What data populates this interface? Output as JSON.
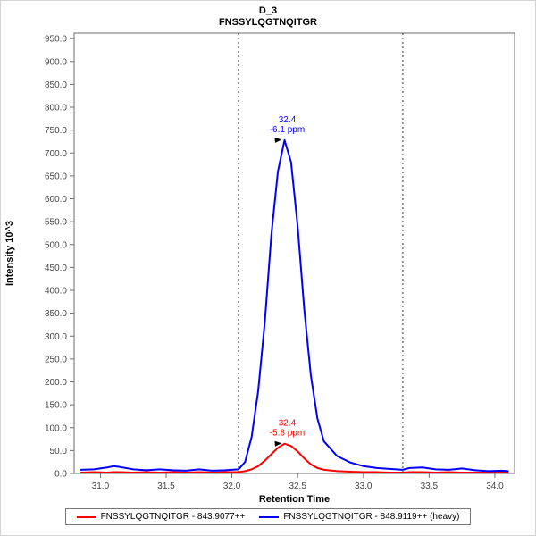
{
  "chart_data": {
    "type": "line",
    "title": "D_3",
    "subtitle": "FNSSYLQGTNQITGR",
    "xlabel": "Retention Time",
    "ylabel": "Intensity 10^3",
    "xlim": [
      30.8,
      34.15
    ],
    "ylim": [
      0,
      962
    ],
    "grid": false,
    "legend_position": "bottom",
    "xticks": [
      {
        "v": 31.0,
        "label": "31.0"
      },
      {
        "v": 31.5,
        "label": "31.5"
      },
      {
        "v": 32.0,
        "label": "32.0"
      },
      {
        "v": 32.5,
        "label": "32.5"
      },
      {
        "v": 33.0,
        "label": "33.0"
      },
      {
        "v": 33.5,
        "label": "33.5"
      },
      {
        "v": 34.0,
        "label": "34.0"
      }
    ],
    "yticks": [
      {
        "v": 0,
        "label": "0.0"
      },
      {
        "v": 50,
        "label": "50.0"
      },
      {
        "v": 100,
        "label": "100.0"
      },
      {
        "v": 150,
        "label": "150.0"
      },
      {
        "v": 200,
        "label": "200.0"
      },
      {
        "v": 250,
        "label": "250.0"
      },
      {
        "v": 300,
        "label": "300.0"
      },
      {
        "v": 350,
        "label": "350.0"
      },
      {
        "v": 400,
        "label": "400.0"
      },
      {
        "v": 450,
        "label": "450.0"
      },
      {
        "v": 500,
        "label": "500.0"
      },
      {
        "v": 550,
        "label": "550.0"
      },
      {
        "v": 600,
        "label": "600.0"
      },
      {
        "v": 650,
        "label": "650.0"
      },
      {
        "v": 700,
        "label": "700.0"
      },
      {
        "v": 750,
        "label": "750.0"
      },
      {
        "v": 800,
        "label": "800.0"
      },
      {
        "v": 850,
        "label": "850.0"
      },
      {
        "v": 900,
        "label": "900.0"
      },
      {
        "v": 950,
        "label": "950.0"
      }
    ],
    "x": [
      30.85,
      30.95,
      31.05,
      31.1,
      31.15,
      31.25,
      31.35,
      31.45,
      31.55,
      31.65,
      31.75,
      31.85,
      31.95,
      32.05,
      32.1,
      32.15,
      32.2,
      32.25,
      32.3,
      32.35,
      32.4,
      32.45,
      32.5,
      32.55,
      32.6,
      32.65,
      32.7,
      32.8,
      32.9,
      33.0,
      33.1,
      33.2,
      33.3,
      33.35,
      33.45,
      33.55,
      33.65,
      33.75,
      33.85,
      33.95,
      34.05,
      34.1
    ],
    "series": [
      {
        "id": "light",
        "name": "FNSSYLQGTNQITGR - 843.9077++",
        "color": "#ff0000",
        "peak_rt": 32.4,
        "peak_ppm": "-5.8 ppm",
        "values": [
          2,
          3,
          2,
          3,
          3,
          2,
          3,
          2,
          3,
          2,
          3,
          2,
          3,
          3,
          5,
          9,
          16,
          28,
          42,
          56,
          65,
          60,
          48,
          33,
          20,
          12,
          8,
          5,
          4,
          3,
          3,
          2,
          2,
          3,
          3,
          2,
          3,
          2,
          2,
          2,
          2,
          2
        ]
      },
      {
        "id": "heavy",
        "name": "FNSSYLQGTNQITGR - 848.9119++ (heavy)",
        "color": "#0000ff",
        "peak_rt": 32.4,
        "peak_ppm": "-6.1 ppm",
        "values": [
          8,
          9,
          13,
          16,
          14,
          9,
          7,
          9,
          7,
          6,
          9,
          6,
          7,
          9,
          25,
          80,
          180,
          330,
          520,
          660,
          728,
          680,
          540,
          360,
          215,
          120,
          70,
          38,
          24,
          16,
          12,
          10,
          8,
          12,
          13,
          9,
          8,
          11,
          7,
          5,
          6,
          5
        ]
      }
    ],
    "integration_boundaries": [
      32.05,
      33.3
    ],
    "annotations": [
      {
        "x": 32.4,
        "y": 728,
        "line1": "32.4",
        "line2": "-6.1 ppm",
        "color": "#0000ff"
      },
      {
        "x": 32.4,
        "y": 65,
        "line1": "32.4",
        "line2": "-5.8 ppm",
        "color": "#ff0000"
      }
    ]
  }
}
